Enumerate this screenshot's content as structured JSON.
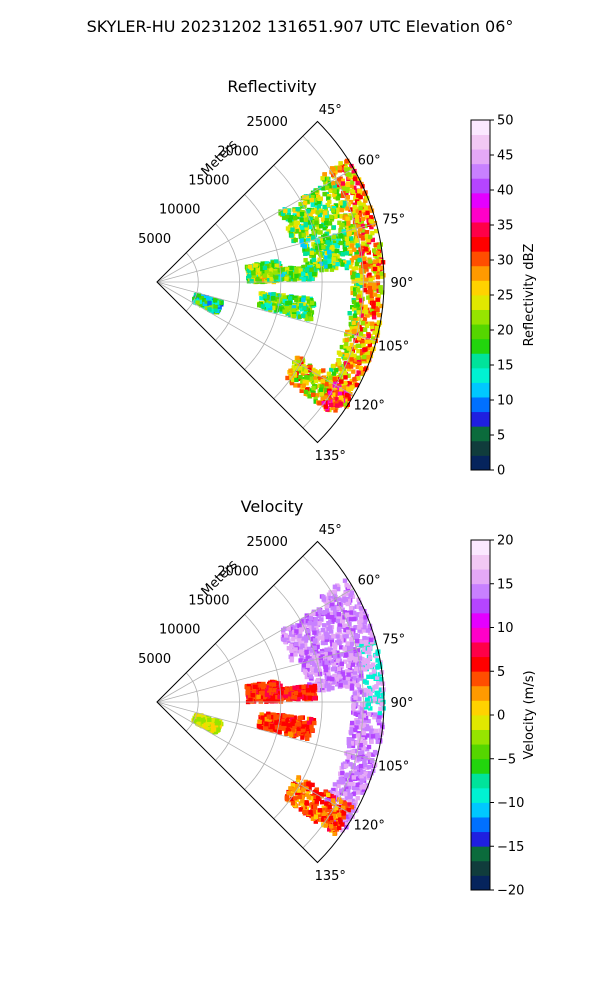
{
  "figure": {
    "suptitle": "SKYLER-HU  20231202  131651.907 UTC Elevation 06°"
  },
  "chart_data": [
    {
      "type": "heatmap",
      "title": "Reflectivity",
      "projection": "polar sector (PPI)",
      "theta_range_deg": [
        45,
        135
      ],
      "theta_ticks": [
        "45°",
        "60°",
        "75°",
        "90°",
        "105°",
        "120°",
        "135°"
      ],
      "range_label": "Meters",
      "range_ticks": [
        "5000",
        "10000",
        "15000",
        "20000",
        "25000"
      ],
      "range_max_m": 27500,
      "grid": true,
      "colorbar": {
        "label": "Reflectivity dBZ",
        "min": 0,
        "max": 50,
        "ticks": [
          "0",
          "5",
          "10",
          "15",
          "20",
          "25",
          "30",
          "35",
          "40",
          "45",
          "50"
        ],
        "colormap": [
          "#06245c",
          "#103c3c",
          "#0b6b3c",
          "#1f1fe0",
          "#0070ff",
          "#00c8ff",
          "#00f2d2",
          "#00e39b",
          "#22d50d",
          "#55d600",
          "#96e400",
          "#e0e800",
          "#ffd200",
          "#ff9a00",
          "#ff4e00",
          "#ff0000",
          "#ff0048",
          "#ff00c8",
          "#e400ff",
          "#b545ff",
          "#c880ff",
          "#e4a8f6",
          "#f2c8f4",
          "#fbe8ff"
        ]
      }
    },
    {
      "type": "heatmap",
      "title": "Velocity",
      "projection": "polar sector (PPI)",
      "theta_range_deg": [
        45,
        135
      ],
      "theta_ticks": [
        "45°",
        "60°",
        "75°",
        "90°",
        "105°",
        "120°",
        "135°"
      ],
      "range_label": "Meters",
      "range_ticks": [
        "5000",
        "10000",
        "15000",
        "20000",
        "25000"
      ],
      "range_max_m": 27500,
      "grid": true,
      "colorbar": {
        "label": "Velocity (m/s)",
        "min": -20,
        "max": 20,
        "ticks": [
          "−20",
          "−15",
          "−10",
          "−5",
          "0",
          "5",
          "10",
          "15",
          "20"
        ],
        "colormap": [
          "#06245c",
          "#103c3c",
          "#0b6b3c",
          "#1f1fe0",
          "#0070ff",
          "#00c8ff",
          "#00f2d2",
          "#00e39b",
          "#22d50d",
          "#55d600",
          "#96e400",
          "#e0e800",
          "#ffd200",
          "#ff9a00",
          "#ff4e00",
          "#ff0000",
          "#ff0048",
          "#ff00c8",
          "#e400ff",
          "#b545ff",
          "#c880ff",
          "#e4a8f6",
          "#f2c8f4",
          "#fbe8ff"
        ]
      }
    }
  ]
}
